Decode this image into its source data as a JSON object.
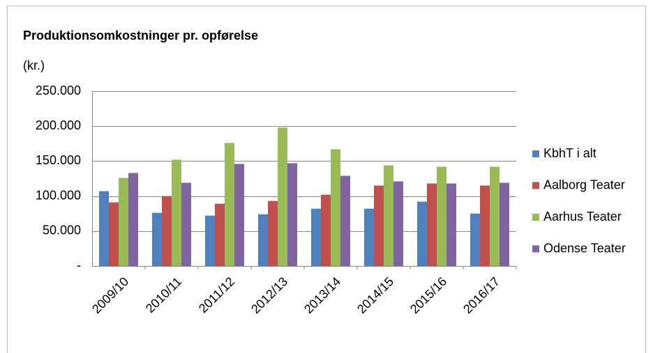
{
  "chart_data": {
    "type": "bar",
    "title": "Produktionsomkostninger pr. opførelse",
    "y_label": "(kr.)",
    "categories": [
      "2009/10",
      "2010/11",
      "2011/12",
      "2012/13",
      "2013/14",
      "2014/15",
      "2015/16",
      "2016/17"
    ],
    "series": [
      {
        "name": "KbhT i alt",
        "color": "#4f81bd",
        "values": [
          107000,
          76000,
          72000,
          74000,
          82000,
          82000,
          92000,
          75000
        ]
      },
      {
        "name": "Aalborg Teater",
        "color": "#c0504d",
        "values": [
          91000,
          100000,
          89000,
          93000,
          102000,
          115000,
          118000,
          115000
        ]
      },
      {
        "name": "Aarhus Teater",
        "color": "#9bbb59",
        "values": [
          126000,
          152000,
          176000,
          198000,
          167000,
          144000,
          142000,
          142000
        ]
      },
      {
        "name": "Odense Teater",
        "color": "#8064a2",
        "values": [
          133000,
          119000,
          146000,
          147000,
          129000,
          121000,
          118000,
          119000
        ]
      }
    ],
    "ylim": [
      0,
      250000
    ],
    "yticks": [
      {
        "value": 0,
        "label": "-"
      },
      {
        "value": 50000,
        "label": "50.000"
      },
      {
        "value": 100000,
        "label": "100.000"
      },
      {
        "value": 150000,
        "label": "150.000"
      },
      {
        "value": 200000,
        "label": "200.000"
      },
      {
        "value": 250000,
        "label": "250.000"
      }
    ],
    "grid": true,
    "legend": "right"
  }
}
